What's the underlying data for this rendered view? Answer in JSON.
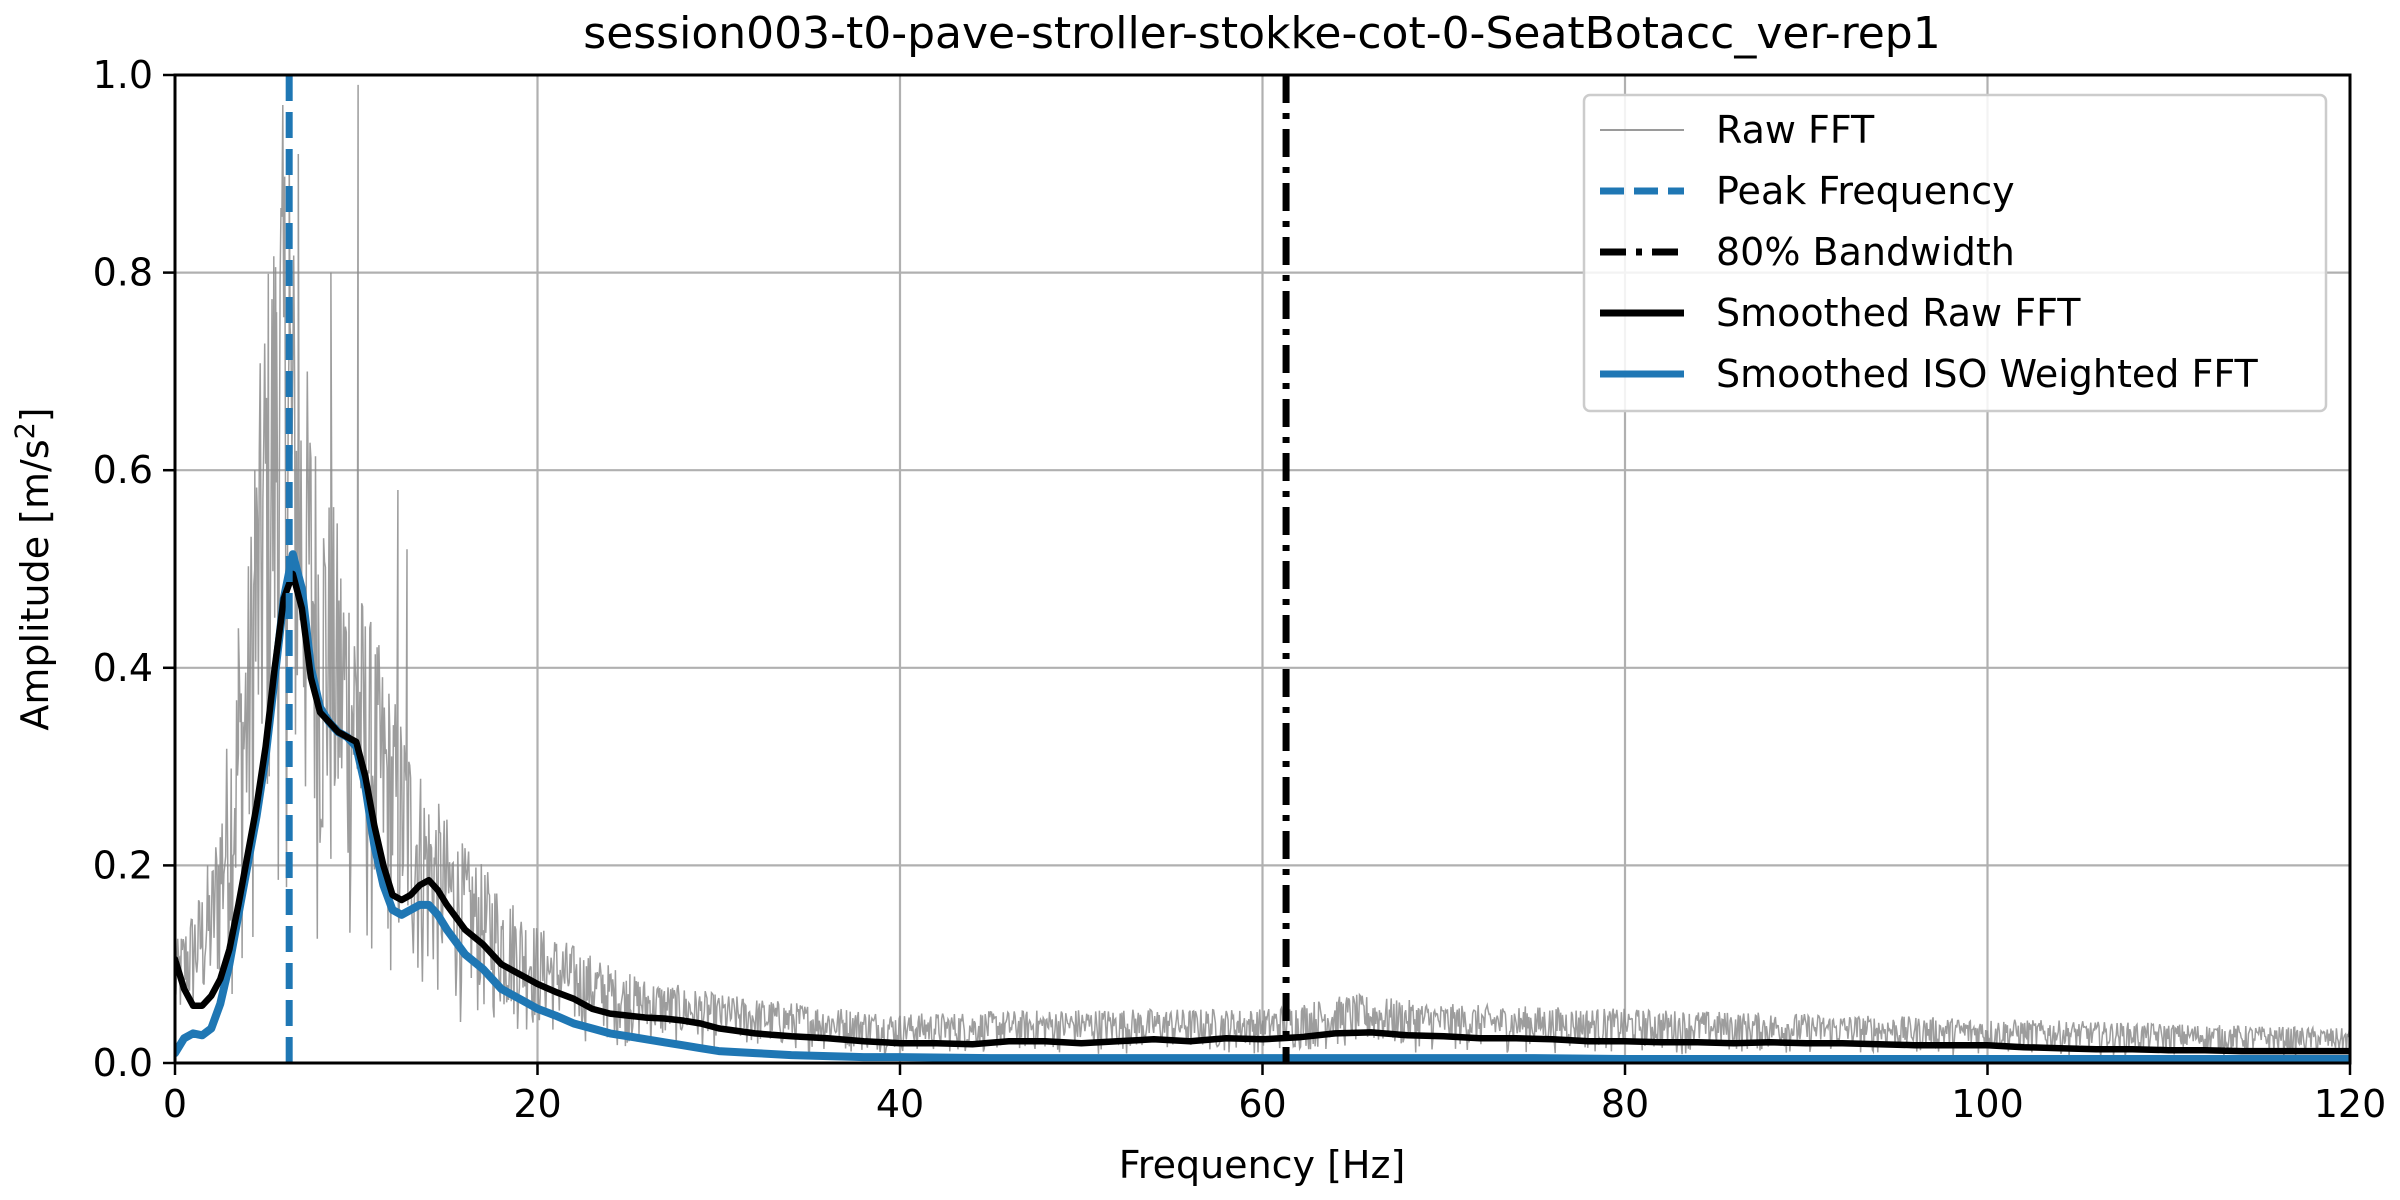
{
  "chart_data": {
    "type": "line",
    "title": "session003-t0-pave-stroller-stokke-cot-0-SeatBotacc_ver-rep1",
    "xlabel": "Frequency [Hz]",
    "ylabel_main": "Amplitude [m/s",
    "ylabel_sup": "2",
    "ylabel_tail": "]",
    "xlim": [
      0,
      120
    ],
    "ylim": [
      0,
      1.0
    ],
    "xticks": [
      0,
      20,
      40,
      60,
      80,
      100,
      120
    ],
    "yticks": [
      0.0,
      0.2,
      0.4,
      0.6,
      0.8,
      1.0
    ],
    "xtick_labels": [
      "0",
      "20",
      "40",
      "60",
      "80",
      "100",
      "120"
    ],
    "ytick_labels": [
      "0.0",
      "0.2",
      "0.4",
      "0.6",
      "0.8",
      "1.0"
    ],
    "grid": true,
    "legend_position": "top-right",
    "peak_frequency": 6.3,
    "bandwidth_80": 61.3,
    "colors": {
      "raw": "#8c8c8c",
      "peak": "#1f77b4",
      "bandwidth": "#000000",
      "smoothed_raw": "#000000",
      "smoothed_iso": "#1f77b4"
    },
    "legend": [
      {
        "key": "raw",
        "label": "Raw FFT",
        "style": "thin-gray"
      },
      {
        "key": "peak",
        "label": "Peak Frequency",
        "style": "dashed-blue"
      },
      {
        "key": "bandwidth",
        "label": "80% Bandwidth",
        "style": "dashdot-black"
      },
      {
        "key": "smoothed_raw",
        "label": "Smoothed Raw FFT",
        "style": "thick-black"
      },
      {
        "key": "smoothed_iso",
        "label": "Smoothed ISO Weighted FFT",
        "style": "thick-blue"
      }
    ],
    "series": [
      {
        "key": "smoothed_raw",
        "x": [
          0,
          0.5,
          1,
          1.5,
          2,
          2.5,
          3,
          3.5,
          4,
          4.5,
          5,
          5.5,
          6,
          6.5,
          7,
          7.5,
          8,
          8.5,
          9,
          9.5,
          10,
          10.5,
          11,
          11.5,
          12,
          12.5,
          13,
          13.5,
          14,
          14.5,
          15,
          16,
          17,
          18,
          19,
          20,
          21,
          22,
          23,
          24,
          25,
          26,
          27,
          28,
          29,
          30,
          32,
          34,
          36,
          38,
          40,
          42,
          44,
          46,
          48,
          50,
          52,
          54,
          56,
          58,
          60,
          62,
          64,
          66,
          68,
          70,
          72,
          74,
          76,
          78,
          80,
          82,
          84,
          86,
          88,
          90,
          92,
          94,
          96,
          98,
          100,
          102,
          104,
          106,
          108,
          110,
          112,
          114,
          116,
          118,
          120
        ],
        "y": [
          0.105,
          0.075,
          0.058,
          0.058,
          0.068,
          0.085,
          0.115,
          0.16,
          0.21,
          0.26,
          0.32,
          0.4,
          0.47,
          0.495,
          0.46,
          0.39,
          0.355,
          0.345,
          0.335,
          0.33,
          0.325,
          0.29,
          0.24,
          0.2,
          0.17,
          0.165,
          0.17,
          0.18,
          0.185,
          0.175,
          0.16,
          0.135,
          0.12,
          0.1,
          0.09,
          0.08,
          0.072,
          0.065,
          0.055,
          0.05,
          0.048,
          0.046,
          0.045,
          0.043,
          0.04,
          0.035,
          0.03,
          0.027,
          0.025,
          0.022,
          0.02,
          0.02,
          0.019,
          0.022,
          0.022,
          0.02,
          0.022,
          0.024,
          0.022,
          0.025,
          0.024,
          0.026,
          0.03,
          0.031,
          0.028,
          0.027,
          0.025,
          0.025,
          0.024,
          0.022,
          0.022,
          0.021,
          0.021,
          0.02,
          0.021,
          0.02,
          0.02,
          0.019,
          0.018,
          0.018,
          0.018,
          0.016,
          0.015,
          0.014,
          0.014,
          0.013,
          0.013,
          0.012,
          0.012,
          0.012,
          0.012
        ]
      },
      {
        "key": "smoothed_iso",
        "x": [
          0,
          0.5,
          1,
          1.5,
          2,
          2.5,
          3,
          3.5,
          4,
          4.5,
          5,
          5.5,
          6,
          6.5,
          7,
          7.5,
          8,
          8.5,
          9,
          9.5,
          10,
          10.5,
          11,
          11.5,
          12,
          12.5,
          13,
          13.5,
          14,
          14.5,
          15,
          16,
          17,
          18,
          19,
          20,
          21,
          22,
          23,
          24,
          25,
          26,
          27,
          28,
          29,
          30,
          32,
          34,
          36,
          38,
          40,
          45,
          50,
          55,
          60,
          65,
          70,
          75,
          80,
          85,
          90,
          95,
          100,
          105,
          110,
          115,
          120
        ],
        "y": [
          0.01,
          0.025,
          0.03,
          0.028,
          0.035,
          0.06,
          0.1,
          0.15,
          0.2,
          0.25,
          0.31,
          0.39,
          0.47,
          0.515,
          0.48,
          0.4,
          0.36,
          0.345,
          0.335,
          0.33,
          0.32,
          0.28,
          0.22,
          0.18,
          0.155,
          0.15,
          0.155,
          0.16,
          0.16,
          0.15,
          0.135,
          0.11,
          0.095,
          0.075,
          0.065,
          0.055,
          0.048,
          0.04,
          0.035,
          0.03,
          0.027,
          0.024,
          0.021,
          0.018,
          0.015,
          0.012,
          0.01,
          0.008,
          0.007,
          0.006,
          0.006,
          0.005,
          0.005,
          0.005,
          0.005,
          0.005,
          0.005,
          0.005,
          0.004,
          0.004,
          0.004,
          0.004,
          0.004,
          0.004,
          0.004,
          0.004,
          0.004
        ]
      }
    ],
    "raw_envelope": {
      "x": [
        0,
        2,
        3,
        4,
        5,
        6,
        7,
        8,
        9,
        10,
        12,
        14,
        16,
        18,
        20,
        22,
        25,
        30,
        35,
        40,
        50,
        60,
        65,
        70,
        80,
        90,
        100,
        110,
        120
      ],
      "peak": [
        0.12,
        0.2,
        0.35,
        0.5,
        0.8,
        0.98,
        0.75,
        0.62,
        0.55,
        0.5,
        0.38,
        0.28,
        0.22,
        0.18,
        0.14,
        0.12,
        0.09,
        0.07,
        0.06,
        0.05,
        0.055,
        0.055,
        0.07,
        0.06,
        0.055,
        0.05,
        0.045,
        0.04,
        0.035
      ],
      "spikes": [
        [
          6.3,
          0.92
        ],
        [
          6.8,
          0.92
        ],
        [
          5.6,
          0.76
        ],
        [
          10.1,
          0.99
        ],
        [
          8.6,
          0.8
        ],
        [
          3.5,
          0.44
        ],
        [
          4.4,
          0.6
        ],
        [
          12.3,
          0.58
        ],
        [
          12.8,
          0.52
        ],
        [
          1.8,
          0.2
        ],
        [
          25.1,
          0.09
        ]
      ]
    }
  }
}
